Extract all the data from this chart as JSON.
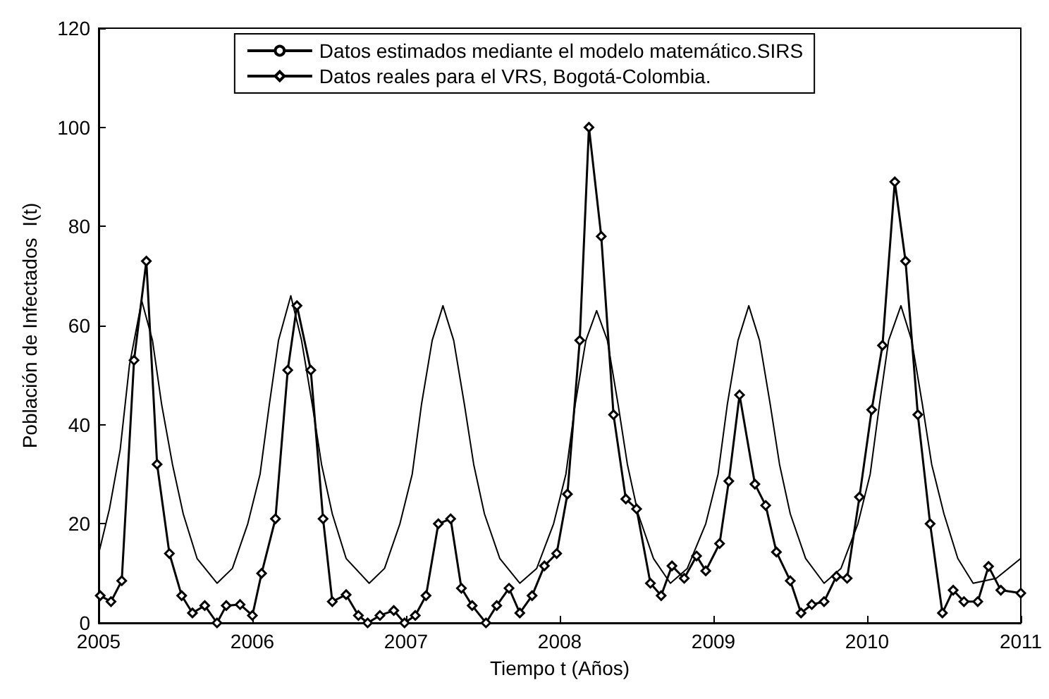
{
  "chart_data": {
    "type": "line",
    "xlabel": "Tiempo t (Años)",
    "ylabel": "Población de Infectados  I(t)",
    "xlim": [
      2005,
      2011
    ],
    "xticks": [
      2005,
      2006,
      2007,
      2008,
      2009,
      2010,
      2011
    ],
    "ylim": [
      0,
      120
    ],
    "yticks": [
      0,
      20,
      40,
      60,
      80,
      100,
      120
    ],
    "grid": false,
    "legend": "top",
    "series": [
      {
        "name": "Datos estimados mediante el modelo matemático.SIRS",
        "color": "#000000",
        "marker": "none",
        "line_style": "solid",
        "x": [
          2005.0,
          2005.07,
          2005.14,
          2005.2,
          2005.28,
          2005.35,
          2005.41,
          2005.48,
          2005.55,
          2005.64,
          2005.77,
          2005.87,
          2005.97,
          2006.05,
          2006.11,
          2006.17,
          2006.25,
          2006.32,
          2006.39,
          2006.45,
          2006.52,
          2006.61,
          2006.76,
          2006.86,
          2006.96,
          2007.04,
          2007.1,
          2007.17,
          2007.24,
          2007.31,
          2007.38,
          2007.44,
          2007.51,
          2007.61,
          2007.74,
          2007.85,
          2007.96,
          2008.04,
          2008.1,
          2008.17,
          2008.24,
          2008.31,
          2008.38,
          2008.44,
          2008.51,
          2008.61,
          2008.72,
          2008.83,
          2008.95,
          2009.03,
          2009.09,
          2009.16,
          2009.23,
          2009.3,
          2009.37,
          2009.43,
          2009.5,
          2009.6,
          2009.72,
          2009.83,
          2009.94,
          2010.02,
          2010.08,
          2010.14,
          2010.22,
          2010.29,
          2010.36,
          2010.42,
          2010.5,
          2010.59,
          2010.69,
          2010.84,
          2011.0
        ],
        "values": [
          14,
          23,
          35,
          52,
          65,
          57,
          44,
          32,
          22,
          13,
          8,
          11,
          20,
          30,
          44,
          57,
          66,
          57,
          44,
          32,
          22,
          13,
          8,
          11,
          20,
          30,
          44,
          57,
          64,
          57,
          44,
          32,
          22,
          13,
          8,
          11,
          20,
          30,
          44,
          57,
          63,
          57,
          44,
          32,
          22,
          13,
          8,
          11,
          20,
          30,
          44,
          57,
          64,
          57,
          44,
          32,
          22,
          13,
          8,
          11,
          20,
          30,
          44,
          57,
          64,
          57,
          44,
          32,
          22,
          13,
          8,
          9,
          13
        ]
      },
      {
        "name": "Datos reales para el VRS, Bogotá-Colombia.",
        "color": "#000000",
        "marker": "diamond",
        "line_style": "solid",
        "x": [
          2005.01,
          2005.08,
          2005.15,
          2005.23,
          2005.31,
          2005.38,
          2005.46,
          2005.54,
          2005.61,
          2005.69,
          2005.77,
          2005.83,
          2005.92,
          2006.0,
          2006.06,
          2006.15,
          2006.23,
          2006.29,
          2006.38,
          2006.46,
          2006.52,
          2006.61,
          2006.69,
          2006.75,
          2006.83,
          2006.92,
          2006.99,
          2007.06,
          2007.13,
          2007.21,
          2007.29,
          2007.36,
          2007.43,
          2007.52,
          2007.59,
          2007.67,
          2007.74,
          2007.82,
          2007.9,
          2007.98,
          2008.05,
          2008.13,
          2008.19,
          2008.27,
          2008.35,
          2008.43,
          2008.5,
          2008.59,
          2008.66,
          2008.73,
          2008.81,
          2008.89,
          2008.95,
          2009.04,
          2009.1,
          2009.17,
          2009.27,
          2009.34,
          2009.41,
          2009.5,
          2009.57,
          2009.64,
          2009.72,
          2009.8,
          2009.87,
          2009.95,
          2010.03,
          2010.1,
          2010.18,
          2010.25,
          2010.33,
          2010.41,
          2010.49,
          2010.56,
          2010.63,
          2010.72,
          2010.79,
          2010.87,
          2011.0
        ],
        "values": [
          5.5,
          4.3,
          8.5,
          53,
          73,
          32,
          14,
          5.5,
          2,
          3.5,
          0,
          3.5,
          3.7,
          1.5,
          10,
          21,
          51,
          64,
          51,
          21,
          4.3,
          5.7,
          1.5,
          0,
          1.5,
          2.5,
          0,
          1.5,
          5.5,
          20,
          21,
          7,
          3.5,
          0,
          3.5,
          7,
          2,
          5.5,
          11.5,
          14,
          26,
          57,
          100,
          78,
          42,
          25,
          23,
          8,
          5.5,
          11.5,
          9,
          13.5,
          10.5,
          16,
          28.6,
          46,
          28,
          23.7,
          14.3,
          8.5,
          2,
          3.7,
          4.3,
          9.4,
          9,
          25.4,
          43,
          56,
          89,
          73,
          42,
          20,
          2,
          6.6,
          4.3,
          4.3,
          11.4,
          6.6,
          6
        ]
      }
    ]
  }
}
